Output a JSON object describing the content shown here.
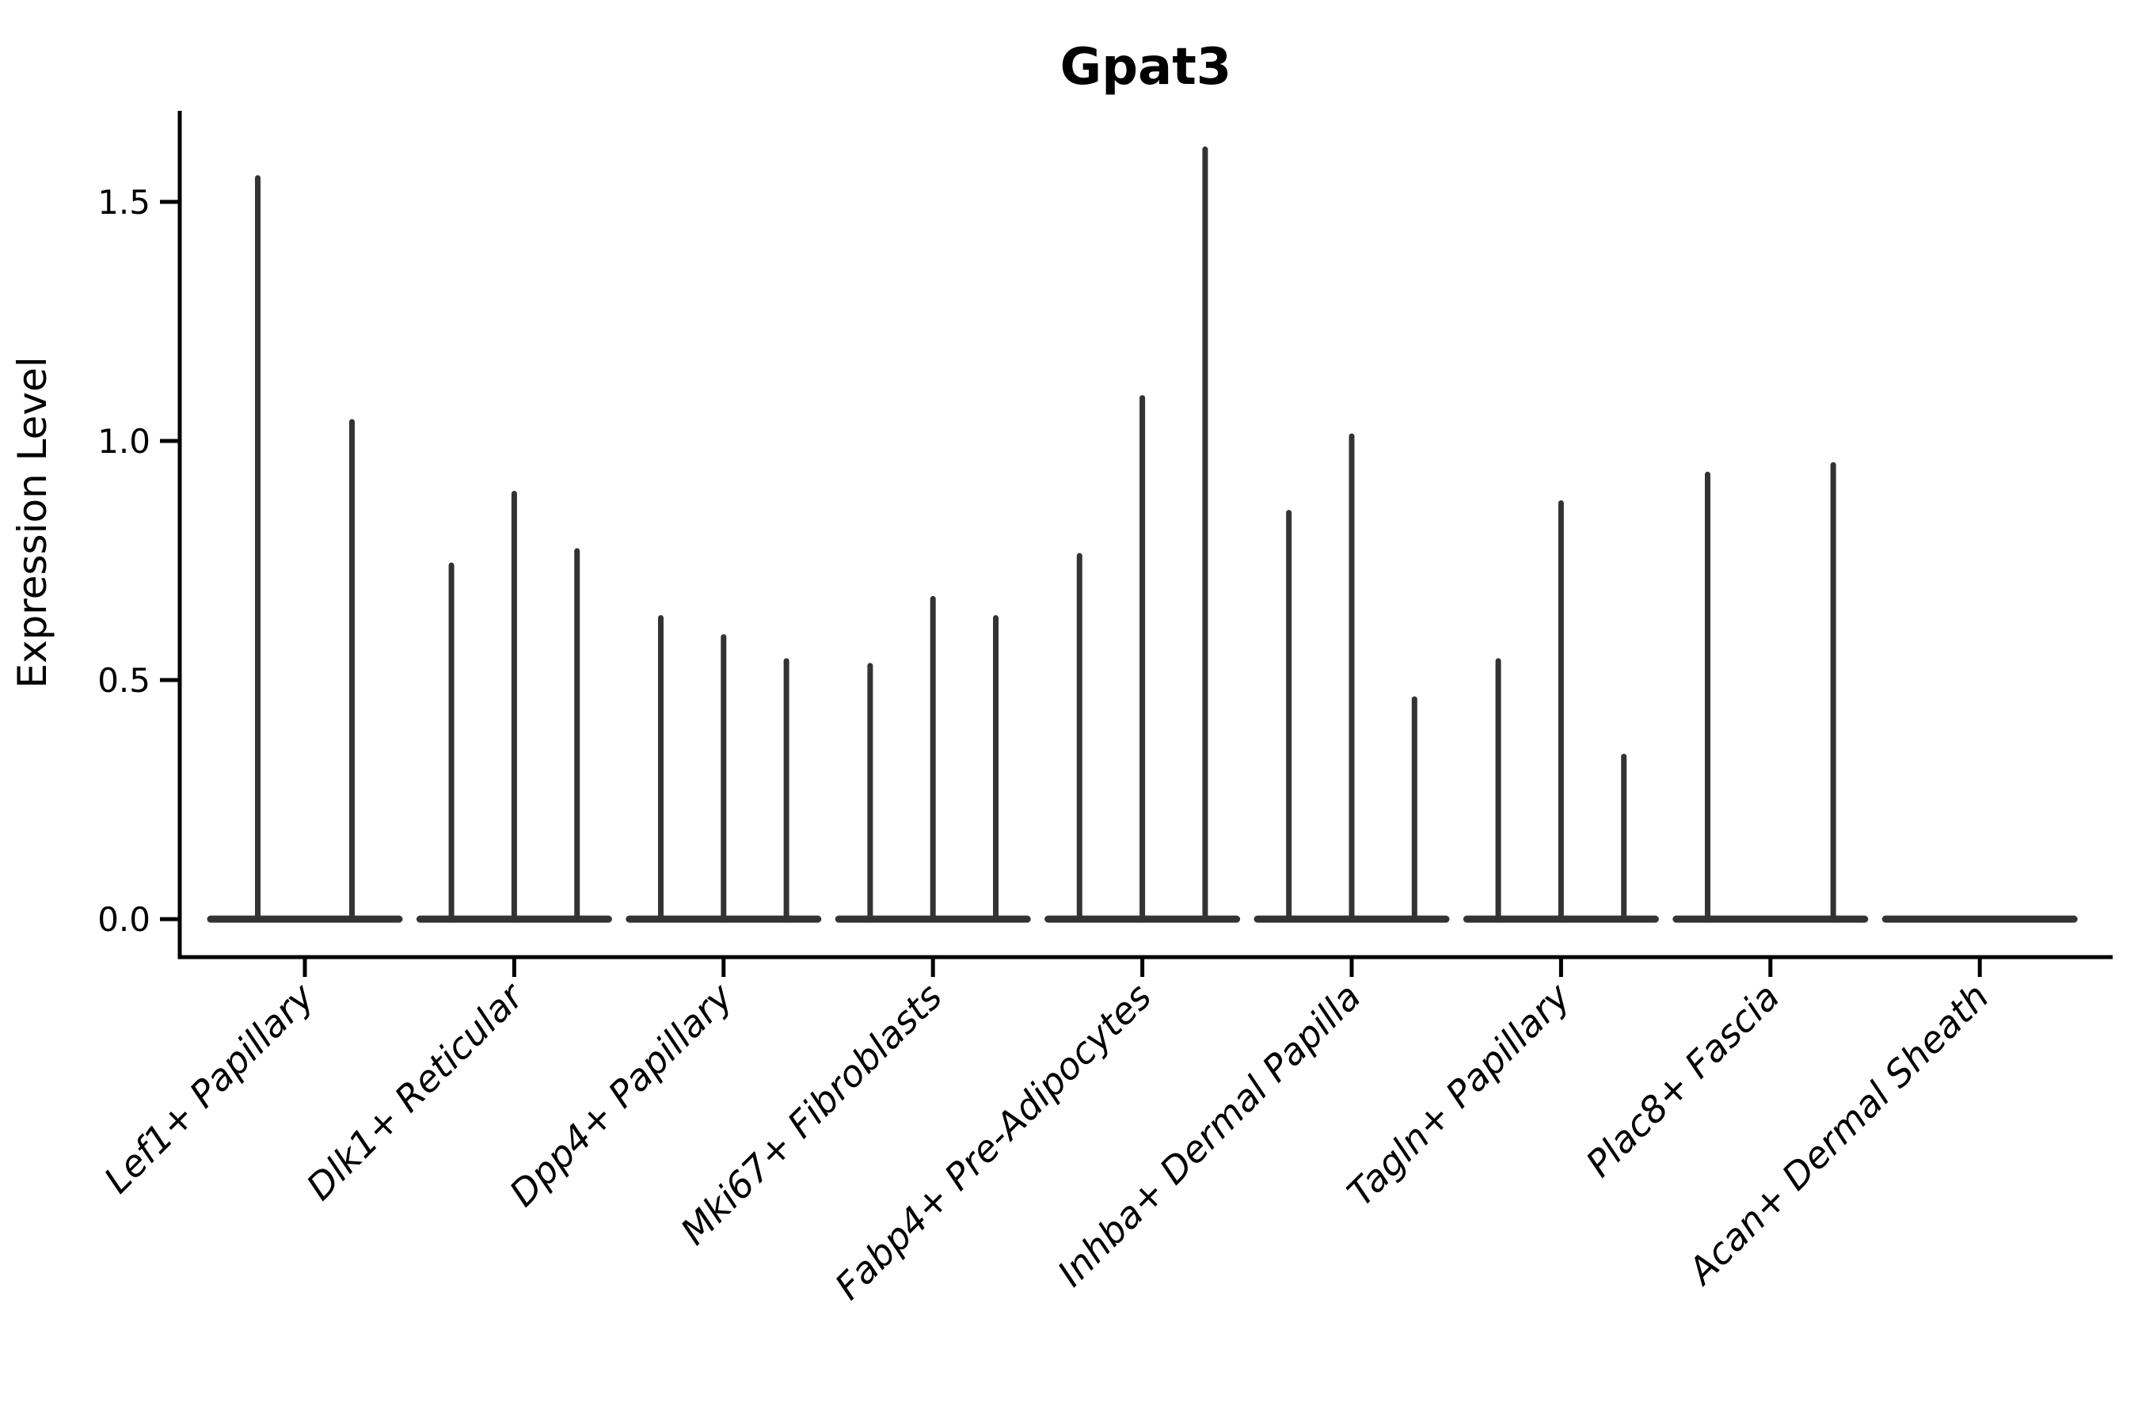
{
  "page": {
    "background": "#ffffff"
  },
  "chart_data": {
    "type": "violin",
    "title": "Gpat3",
    "ylabel": "Expression Level",
    "xlabel": "",
    "legend": "none",
    "grid": false,
    "ylim": [
      -0.08,
      1.69
    ],
    "ytick_labels": [
      "0.0",
      "0.5",
      "1.0",
      "1.5"
    ],
    "ytick_values": [
      0.0,
      0.5,
      1.0,
      1.5
    ],
    "violin_line_color": "#333333",
    "axis_color": "#000000",
    "description": "Needle-thin violins of Gpat3 expression per fibroblast subtype; most mass at 0 with narrow spikes to the per-violin maximum. Each category holds 2-3 split violins over a shared flat zero baseline.",
    "categories": [
      {
        "label": "Lef1+ Papillary",
        "violin_offsets": [
          -0.225,
          0.225
        ],
        "violin_max_values": [
          1.55,
          1.04
        ]
      },
      {
        "label": "Dlk1+ Reticular",
        "violin_offsets": [
          -0.3,
          0,
          0.3
        ],
        "violin_max_values": [
          0.74,
          0.89,
          0.77
        ]
      },
      {
        "label": "Dpp4+ Papillary",
        "violin_offsets": [
          -0.3,
          0,
          0.3
        ],
        "violin_max_values": [
          0.63,
          0.59,
          0.54
        ]
      },
      {
        "label": "Mki67+ Fibroblasts",
        "violin_offsets": [
          -0.3,
          0,
          0.3
        ],
        "violin_max_values": [
          0.53,
          0.67,
          0.63
        ]
      },
      {
        "label": "Fabp4+ Pre-Adipocytes",
        "violin_offsets": [
          -0.3,
          0,
          0.3
        ],
        "violin_max_values": [
          0.76,
          1.09,
          1.61
        ]
      },
      {
        "label": "Inhba+ Dermal Papilla",
        "violin_offsets": [
          -0.3,
          0,
          0.3
        ],
        "violin_max_values": [
          0.85,
          1.01,
          0.46
        ]
      },
      {
        "label": "Tagln+ Papillary",
        "violin_offsets": [
          -0.3,
          0,
          0.3
        ],
        "violin_max_values": [
          0.54,
          0.87,
          0.34
        ]
      },
      {
        "label": "Plac8+ Fascia",
        "violin_offsets": [
          -0.3,
          0,
          0.3
        ],
        "violin_max_values": [
          0.93,
          0,
          0.95
        ]
      },
      {
        "label": "Acan+ Dermal Sheath",
        "violin_offsets": [
          0
        ],
        "violin_max_values": [
          0
        ]
      }
    ]
  }
}
